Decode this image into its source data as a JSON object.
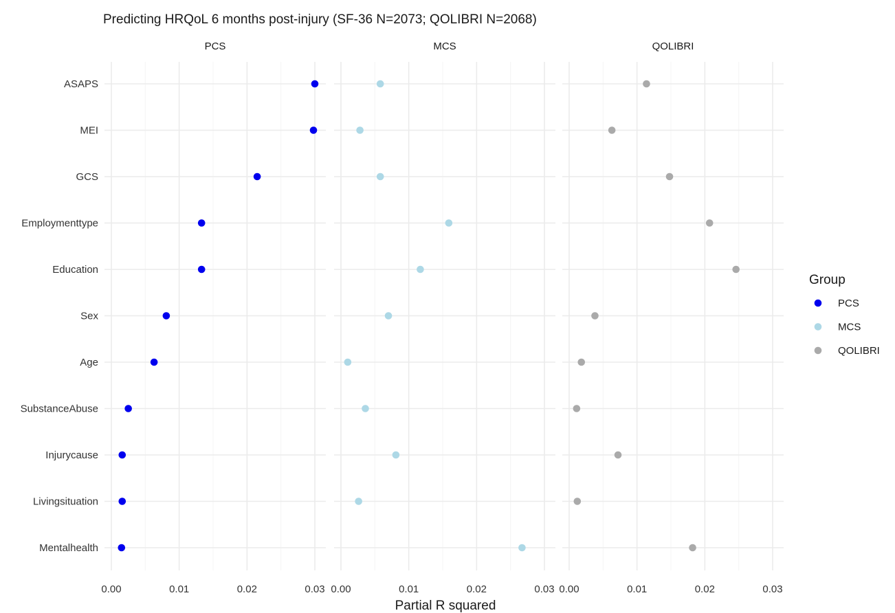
{
  "chart_data": {
    "type": "scatter",
    "title": "Predicting HRQoL 6 months post-injury (SF-36 N=2073; QOLIBRI N=2068)",
    "xlabel": "Partial R squared",
    "ylabel": "",
    "xlim": [
      0,
      0.03
    ],
    "x_ticks": [
      "0.00",
      "0.01",
      "0.02",
      "0.03"
    ],
    "grid": true,
    "legend": {
      "title": "Group",
      "position": "right"
    },
    "categories": [
      "ASAPS",
      "MEI",
      "GCS",
      "Employmenttype",
      "Education",
      "Sex",
      "Age",
      "SubstanceAbuse",
      "Injurycause",
      "Livingsituation",
      "Mentalhealth"
    ],
    "facets": [
      "PCS",
      "MCS",
      "QOLIBRI"
    ],
    "series": [
      {
        "name": "PCS",
        "color": "#0000ee",
        "values": [
          0.03,
          0.0298,
          0.0215,
          0.0133,
          0.0133,
          0.0081,
          0.0063,
          0.0025,
          0.0016,
          0.0016,
          0.0015
        ]
      },
      {
        "name": "MCS",
        "color": "#add8e6",
        "values": [
          0.0058,
          0.0028,
          0.0058,
          0.0159,
          0.0117,
          0.007,
          0.001,
          0.0036,
          0.0081,
          0.0026,
          0.0267
        ]
      },
      {
        "name": "QOLIBRI",
        "color": "#aaaaaa",
        "values": [
          0.0114,
          0.0063,
          0.0148,
          0.0207,
          0.0246,
          0.0038,
          0.0018,
          0.0011,
          0.0072,
          0.0012,
          0.0182
        ]
      }
    ]
  }
}
